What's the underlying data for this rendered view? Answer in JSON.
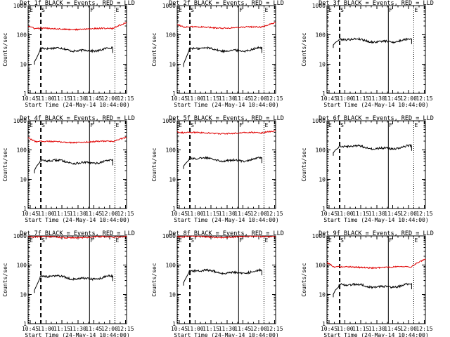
{
  "chart_data": [
    {
      "type": "line",
      "title": "Det 1f BLACK = Events, RED = LLD",
      "xlabel": "Start Time (24-May-14 10:44:00)",
      "ylabel": "Counts/sec",
      "yscale": "log",
      "ylim": [
        1,
        1000
      ],
      "xlim_min": [
        -1,
        92
      ],
      "yticks": [
        "1",
        "10",
        "100",
        "1000"
      ],
      "xtick_min": [
        1,
        16,
        31,
        46,
        61,
        76,
        91
      ],
      "xticks": [
        "10:45",
        "11:00",
        "11:15",
        "11:30",
        "11:45",
        "12:00",
        "12:15"
      ],
      "markers": [
        {
          "label": "E",
          "t": -1,
          "style": "dotted"
        },
        {
          "label": "S",
          "t": 11,
          "style": "dashed"
        },
        {
          "label": "F",
          "t": 57,
          "style": "solid"
        },
        {
          "label": "E",
          "t": 81,
          "style": "dotted"
        }
      ],
      "series": [
        {
          "name": "Events",
          "color": "#000000",
          "rises": [
            [
              5,
              12
            ],
            [
              7,
              16
            ],
            [
              10,
              28
            ]
          ],
          "level": 32,
          "end_t": 79
        },
        {
          "name": "LLD",
          "color": "#e00000",
          "start": 200,
          "level": 160,
          "end_level": 260,
          "end_t": 92
        }
      ]
    },
    {
      "type": "line",
      "title": "Det 2f BLACK = Events, RED = LLD",
      "xlabel": "Start Time (24-May-14 10:44:00)",
      "ylabel": "Counts/sec",
      "yscale": "log",
      "ylim": [
        1,
        1000
      ],
      "xlim_min": [
        -1,
        92
      ],
      "yticks": [
        "1",
        "10",
        "100",
        "1000"
      ],
      "xtick_min": [
        1,
        16,
        31,
        46,
        61,
        76,
        91
      ],
      "xticks": [
        "10:45",
        "11:00",
        "11:15",
        "11:30",
        "11:45",
        "12:00",
        "12:15"
      ],
      "markers": [
        {
          "label": "E",
          "t": -1,
          "style": "dotted"
        },
        {
          "label": "S",
          "t": 11,
          "style": "dashed"
        },
        {
          "label": "F",
          "t": 57,
          "style": "solid"
        },
        {
          "label": "E",
          "t": 81,
          "style": "dotted"
        }
      ],
      "series": [
        {
          "name": "Events",
          "color": "#000000",
          "rises": [
            [
              5,
              10
            ],
            [
              7,
              15
            ],
            [
              10,
              28
            ]
          ],
          "level": 32,
          "end_t": 79
        },
        {
          "name": "LLD",
          "color": "#e00000",
          "start": 230,
          "level": 180,
          "end_level": 260,
          "end_t": 92
        }
      ]
    },
    {
      "type": "line",
      "title": "Det 3f BLACK = Events, RED = LLD",
      "xlabel": "Start Time (24-May-14 10:44:00)",
      "ylabel": "Counts/sec",
      "yscale": "log",
      "ylim": [
        1,
        1000
      ],
      "xlim_min": [
        -1,
        92
      ],
      "yticks": [
        "1",
        "10",
        "100",
        "1000"
      ],
      "xtick_min": [
        1,
        16,
        31,
        46,
        61,
        76,
        91
      ],
      "xticks": [
        "10:45",
        "11:00",
        "11:15",
        "11:30",
        "11:45",
        "12:00",
        "12:15"
      ],
      "markers": [
        {
          "label": "E",
          "t": -1,
          "style": "dotted"
        },
        {
          "label": "S",
          "t": 11,
          "style": "dashed"
        },
        {
          "label": "F",
          "t": 57,
          "style": "solid"
        },
        {
          "label": "E",
          "t": 81,
          "style": "dotted"
        }
      ],
      "series": [
        {
          "name": "Events",
          "color": "#000000",
          "rises": [
            [
              5,
              45
            ],
            [
              7,
              55
            ],
            [
              10,
              65
            ]
          ],
          "level": 65,
          "end_t": 79
        }
      ]
    },
    {
      "type": "line",
      "title": "Det 4f BLACK = Events, RED = LLD",
      "xlabel": "Start Time (24-May-14 10:44:00)",
      "ylabel": "Counts/sec",
      "yscale": "log",
      "ylim": [
        1,
        1000
      ],
      "xlim_min": [
        -1,
        92
      ],
      "yticks": [
        "1",
        "10",
        "100",
        "1000"
      ],
      "xtick_min": [
        1,
        16,
        31,
        46,
        61,
        76,
        91
      ],
      "xticks": [
        "10:45",
        "11:00",
        "11:15",
        "11:30",
        "11:45",
        "12:00",
        "12:15"
      ],
      "markers": [
        {
          "label": "E",
          "t": -1,
          "style": "dotted"
        },
        {
          "label": "S",
          "t": 11,
          "style": "dashed"
        },
        {
          "label": "F",
          "t": 57,
          "style": "solid"
        },
        {
          "label": "E",
          "t": 81,
          "style": "dotted"
        }
      ],
      "series": [
        {
          "name": "Events",
          "color": "#000000",
          "rises": [
            [
              5,
              20
            ],
            [
              7,
              28
            ],
            [
              10,
              38
            ]
          ],
          "level": 40,
          "end_t": 79
        },
        {
          "name": "LLD",
          "color": "#e00000",
          "start": 260,
          "level": 190,
          "end_level": 270,
          "end_t": 92
        }
      ]
    },
    {
      "type": "line",
      "title": "Det 5f BLACK = Events, RED = LLD",
      "xlabel": "Start Time (24-May-14 10:44:00)",
      "ylabel": "Counts/sec",
      "yscale": "log",
      "ylim": [
        1,
        1000
      ],
      "xlim_min": [
        -1,
        92
      ],
      "yticks": [
        "1",
        "10",
        "100",
        "1000"
      ],
      "xtick_min": [
        1,
        16,
        31,
        46,
        61,
        76,
        91
      ],
      "xticks": [
        "10:45",
        "11:00",
        "11:15",
        "11:30",
        "11:45",
        "12:00",
        "12:15"
      ],
      "markers": [
        {
          "label": "E",
          "t": -1,
          "style": "dotted"
        },
        {
          "label": "S",
          "t": 11,
          "style": "dashed"
        },
        {
          "label": "F",
          "t": 57,
          "style": "solid"
        },
        {
          "label": "E",
          "t": 81,
          "style": "dotted"
        }
      ],
      "series": [
        {
          "name": "Events",
          "color": "#000000",
          "rises": [
            [
              5,
              28
            ],
            [
              7,
              35
            ],
            [
              10,
              45
            ]
          ],
          "level": 48,
          "end_t": 79
        },
        {
          "name": "LLD",
          "color": "#e00000",
          "start": 420,
          "level": 380,
          "end_level": 460,
          "end_t": 92
        }
      ]
    },
    {
      "type": "line",
      "title": "Det 6f BLACK = Events, RED = LLD",
      "xlabel": "Start Time (24-May-14 10:44:00)",
      "ylabel": "Counts/sec",
      "yscale": "log",
      "ylim": [
        1,
        1000
      ],
      "xlim_min": [
        -1,
        92
      ],
      "yticks": [
        "1",
        "10",
        "100",
        "1000"
      ],
      "xtick_min": [
        1,
        16,
        31,
        46,
        61,
        76,
        91
      ],
      "xticks": [
        "10:45",
        "11:00",
        "11:15",
        "11:30",
        "11:45",
        "12:00",
        "12:15"
      ],
      "markers": [
        {
          "label": "E",
          "t": -1,
          "style": "dotted"
        },
        {
          "label": "S",
          "t": 11,
          "style": "dashed"
        },
        {
          "label": "F",
          "t": 57,
          "style": "solid"
        },
        {
          "label": "E",
          "t": 81,
          "style": "dotted"
        }
      ],
      "series": [
        {
          "name": "Events",
          "color": "#000000",
          "rises": [
            [
              5,
              80
            ],
            [
              7,
              100
            ],
            [
              10,
              120
            ]
          ],
          "level": 125,
          "end_t": 79
        }
      ]
    },
    {
      "type": "line",
      "title": "Det 7f BLACK = Events, RED = LLD",
      "xlabel": "Start Time (24-May-14 10:44:00)",
      "ylabel": "Counts/sec",
      "yscale": "log",
      "ylim": [
        1,
        1000
      ],
      "xlim_min": [
        -1,
        92
      ],
      "yticks": [
        "1",
        "10",
        "100",
        "1000"
      ],
      "xtick_min": [
        1,
        16,
        31,
        46,
        61,
        76,
        91
      ],
      "xticks": [
        "10:45",
        "11:00",
        "11:15",
        "11:30",
        "11:45",
        "12:00",
        "12:15"
      ],
      "markers": [
        {
          "label": "E",
          "t": -1,
          "style": "dotted"
        },
        {
          "label": "S",
          "t": 11,
          "style": "dashed"
        },
        {
          "label": "F",
          "t": 57,
          "style": "solid"
        },
        {
          "label": "E",
          "t": 81,
          "style": "dotted"
        }
      ],
      "series": [
        {
          "name": "Events",
          "color": "#000000",
          "rises": [
            [
              5,
              14
            ],
            [
              7,
              20
            ],
            [
              10,
              35
            ]
          ],
          "level": 38,
          "end_t": 79
        },
        {
          "name": "LLD",
          "color": "#e00000",
          "start": 950,
          "level": 900,
          "end_level": 950,
          "end_t": 92
        }
      ]
    },
    {
      "type": "line",
      "title": "Det 8f BLACK = Events, RED = LLD",
      "xlabel": "Start Time (24-May-14 10:44:00)",
      "ylabel": "Counts/sec",
      "yscale": "log",
      "ylim": [
        1,
        1000
      ],
      "xlim_min": [
        -1,
        92
      ],
      "yticks": [
        "1",
        "10",
        "100",
        "1000"
      ],
      "xtick_min": [
        1,
        16,
        31,
        46,
        61,
        76,
        91
      ],
      "xticks": [
        "10:45",
        "11:00",
        "11:15",
        "11:30",
        "11:45",
        "12:00",
        "12:15"
      ],
      "markers": [
        {
          "label": "E",
          "t": -1,
          "style": "dotted"
        },
        {
          "label": "S",
          "t": 11,
          "style": "dashed"
        },
        {
          "label": "F",
          "t": 57,
          "style": "solid"
        },
        {
          "label": "E",
          "t": 81,
          "style": "dotted"
        }
      ],
      "series": [
        {
          "name": "Events",
          "color": "#000000",
          "rises": [
            [
              5,
              25
            ],
            [
              7,
              35
            ],
            [
              10,
              55
            ]
          ],
          "level": 60,
          "end_t": 79
        },
        {
          "name": "LLD",
          "color": "#e00000",
          "start": 950,
          "level": 930,
          "end_level": 960,
          "end_t": 92
        }
      ]
    },
    {
      "type": "line",
      "title": "Det 9f BLACK = Events, RED = LLD",
      "xlabel": "Start Time (24-May-14 10:44:00)",
      "ylabel": "Counts/sec",
      "yscale": "log",
      "ylim": [
        1,
        1000
      ],
      "xlim_min": [
        -1,
        92
      ],
      "yticks": [
        "1",
        "10",
        "100",
        "1000"
      ],
      "xtick_min": [
        1,
        16,
        31,
        46,
        61,
        76,
        91
      ],
      "xticks": [
        "10:45",
        "11:00",
        "11:15",
        "11:30",
        "11:45",
        "12:00",
        "12:15"
      ],
      "markers": [
        {
          "label": "E",
          "t": -1,
          "style": "dotted"
        },
        {
          "label": "S",
          "t": 11,
          "style": "dashed"
        },
        {
          "label": "F",
          "t": 57,
          "style": "solid"
        },
        {
          "label": "E",
          "t": 81,
          "style": "dotted"
        }
      ],
      "series": [
        {
          "name": "Events",
          "color": "#000000",
          "rises": [
            [
              5,
              10
            ],
            [
              7,
              14
            ],
            [
              10,
              18
            ]
          ],
          "level": 20,
          "end_t": 79
        },
        {
          "name": "LLD",
          "color": "#e00000",
          "start": 120,
          "level": 85,
          "end_level": 160,
          "end_t": 92
        }
      ]
    }
  ]
}
